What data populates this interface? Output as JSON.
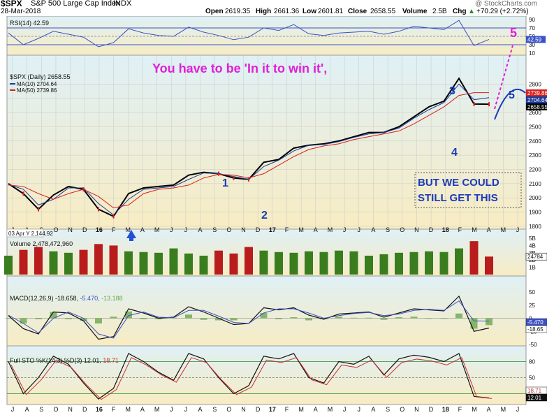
{
  "header": {
    "symbol": "$SPX",
    "name": "S&P 500 Large Cap Index",
    "exchange": "INDX",
    "date": "28-Mar-2018",
    "source": "@ StockCharts.com",
    "open_label": "Open",
    "open": "2619.35",
    "high_label": "High",
    "high": "2661.36",
    "low_label": "Low",
    "low": "2601.81",
    "close_label": "Close",
    "close": "2658.55",
    "volume_label": "Volume",
    "volume": "2.5B",
    "chg_label": "Chg",
    "chg": "+70.29 (+2.72%)",
    "chg_arrow": "▲"
  },
  "colors": {
    "panel_bg_top": "#dff0f6",
    "panel_bg_bottom": "#f8ecc2",
    "price_line": "#000000",
    "ma10": "#1a3b9c",
    "ma50": "#d42020",
    "volume_up": "#3a7d1f",
    "volume_down": "#b81c1c",
    "annotation_magenta": "#e020d8",
    "annotation_blue": "#1a3bb8",
    "rsi_line": "#3a52c8"
  },
  "icons": {
    "callout_arrow": "up-arrow-icon"
  },
  "rsi": {
    "label": "RSI(14) 42.59",
    "value_tag": "42.59",
    "ticks": [
      "90",
      "70",
      "50",
      "30",
      "10"
    ]
  },
  "price": {
    "legend_title": "$SPX (Daily) 2658.55",
    "ma10_label": "MA(10) 2704.64",
    "ma50_label": "MA(50) 2739.86",
    "ticks": [
      "2800",
      "2700",
      "2600",
      "2500",
      "2400",
      "2300",
      "2200",
      "2100",
      "2000",
      "1900",
      "1800"
    ],
    "value_tags": [
      "2739.86",
      "2704.64",
      "2658.55"
    ],
    "date_tag": "03 Apr Y 2,144.92"
  },
  "annotations": {
    "headline": "You have to be 'In it to win it',",
    "wave_1": "1",
    "wave_2": "2",
    "wave_3": "3",
    "wave_4": "4",
    "wave_5_top": "5",
    "wave_5_alt": "5",
    "box_line1": "BUT WE COULD",
    "box_line2": "STILL GET THIS"
  },
  "volume": {
    "label": "Volume 2,478,472,960",
    "ticks": [
      "5B",
      "4B",
      "3B",
      "2B",
      "1B"
    ],
    "value_tag": "24784"
  },
  "macd": {
    "label_name": "MACD(12,26,9)",
    "macd_value": "-18.658",
    "signal_value": "-5.470",
    "hist_value": "-13.188",
    "ticks": [
      "50",
      "25",
      "0",
      "-25",
      "-50"
    ],
    "value_tags": [
      "-5.470",
      "-18.65"
    ]
  },
  "sto": {
    "label_name": "Full STO %K(14,3) %D(3)",
    "k_value": "12.01",
    "d_value": "18.71",
    "ticks": [
      "80",
      "50",
      "20"
    ],
    "value_tags": [
      "18.71",
      "12.01"
    ]
  },
  "x_axis": {
    "months": [
      "J",
      "A",
      "S",
      "O",
      "N",
      "D",
      "16",
      "F",
      "M",
      "A",
      "M",
      "J",
      "J",
      "A",
      "S",
      "O",
      "N",
      "D",
      "17",
      "F",
      "M",
      "A",
      "M",
      "J",
      "J",
      "A",
      "S",
      "O",
      "N",
      "D",
      "18",
      "F",
      "M",
      "A",
      "M",
      "J"
    ]
  },
  "chart_data": {
    "type": "line",
    "title": "$SPX S&P 500 Large Cap Index INDX",
    "xlabel": "",
    "ylabel": "",
    "x": [
      "2015-07",
      "2015-08",
      "2015-09",
      "2015-10",
      "2015-11",
      "2015-12",
      "2016-01",
      "2016-02",
      "2016-03",
      "2016-04",
      "2016-05",
      "2016-06",
      "2016-07",
      "2016-08",
      "2016-09",
      "2016-10",
      "2016-11",
      "2016-12",
      "2017-01",
      "2017-02",
      "2017-03",
      "2017-04",
      "2017-05",
      "2017-06",
      "2017-07",
      "2017-08",
      "2017-09",
      "2017-10",
      "2017-11",
      "2017-12",
      "2018-01",
      "2018-02",
      "2018-03"
    ],
    "ylim": [
      1780,
      2900
    ],
    "series": [
      {
        "name": "$SPX (Daily)",
        "values": [
          2100,
          2030,
          1920,
          2020,
          2080,
          2060,
          1920,
          1870,
          2030,
          2070,
          2080,
          2090,
          2160,
          2180,
          2170,
          2140,
          2130,
          2250,
          2270,
          2350,
          2370,
          2380,
          2400,
          2430,
          2460,
          2460,
          2500,
          2570,
          2640,
          2680,
          2840,
          2660,
          2658.55
        ]
      },
      {
        "name": "MA(10)",
        "values": [
          2095,
          2060,
          1950,
          1990,
          2070,
          2070,
          1960,
          1880,
          1990,
          2060,
          2070,
          2080,
          2130,
          2175,
          2170,
          2150,
          2130,
          2220,
          2265,
          2330,
          2370,
          2375,
          2395,
          2425,
          2450,
          2460,
          2490,
          2560,
          2620,
          2670,
          2800,
          2690,
          2704.64
        ]
      },
      {
        "name": "MA(50)",
        "values": [
          2090,
          2080,
          2030,
          1990,
          2030,
          2060,
          2010,
          1930,
          1950,
          2030,
          2060,
          2070,
          2090,
          2140,
          2165,
          2160,
          2140,
          2170,
          2230,
          2290,
          2340,
          2365,
          2380,
          2410,
          2430,
          2450,
          2470,
          2520,
          2580,
          2640,
          2720,
          2740,
          2739.86
        ]
      }
    ],
    "rsi_values": [
      58,
      30,
      45,
      62,
      55,
      48,
      25,
      35,
      68,
      58,
      52,
      50,
      72,
      60,
      52,
      42,
      48,
      70,
      64,
      78,
      56,
      52,
      58,
      60,
      62,
      55,
      62,
      74,
      70,
      66,
      88,
      28,
      42.59
    ],
    "volume_values_billions": [
      2.6,
      3.4,
      3.8,
      3.2,
      3.0,
      3.4,
      4.2,
      4.0,
      3.2,
      3.1,
      3.0,
      3.6,
      2.9,
      2.6,
      3.3,
      2.9,
      3.8,
      3.3,
      3.1,
      3.0,
      3.2,
      3.1,
      3.3,
      3.2,
      2.6,
      2.8,
      3.0,
      3.1,
      3.2,
      3.1,
      3.6,
      4.6,
      2.478
    ],
    "macd_values": [
      5,
      -20,
      -30,
      12,
      10,
      -5,
      -40,
      -35,
      18,
      10,
      0,
      2,
      22,
      12,
      0,
      -12,
      -10,
      20,
      16,
      20,
      6,
      -2,
      8,
      10,
      12,
      2,
      10,
      18,
      16,
      14,
      42,
      -25,
      -18.658
    ],
    "signal_values": [
      6,
      -10,
      -28,
      0,
      12,
      0,
      -30,
      -38,
      5,
      12,
      2,
      1,
      15,
      15,
      4,
      -8,
      -10,
      10,
      18,
      18,
      10,
      0,
      5,
      9,
      11,
      5,
      8,
      15,
      17,
      15,
      33,
      -5,
      -5.47
    ],
    "sto_k_values": [
      80,
      20,
      50,
      90,
      75,
      40,
      10,
      30,
      95,
      80,
      60,
      45,
      95,
      85,
      50,
      20,
      35,
      90,
      85,
      95,
      50,
      40,
      80,
      75,
      90,
      55,
      85,
      92,
      88,
      80,
      95,
      15,
      12.01
    ]
  }
}
